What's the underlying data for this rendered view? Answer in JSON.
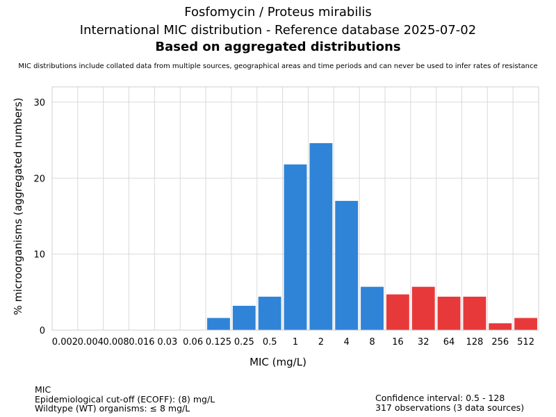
{
  "header": {
    "title_line1": "Fosfomycin / Proteus mirabilis",
    "title_line2": "International MIC distribution - Reference database 2025-07-02",
    "title_line3": "Based on aggregated distributions",
    "note": "MIC distributions include collated data from multiple sources, geographical areas and time periods and can never be used to infer rates of resistance"
  },
  "footer": {
    "left": [
      "MIC",
      "Epidemiological cut-off (ECOFF): (8) mg/L",
      "Wildtype (WT) organisms: ≤ 8 mg/L"
    ],
    "right": [
      "Confidence interval: 0.5 - 128",
      "317 observations (3 data sources)"
    ]
  },
  "colors": {
    "wildtype": "#2f84d8",
    "non_wildtype": "#e8393a",
    "grid": "#d9d9d9"
  },
  "chart_data": {
    "type": "bar",
    "title": "Fosfomycin / Proteus mirabilis",
    "xlabel": "MIC (mg/L)",
    "ylabel": "% microorganisms (aggregated numbers)",
    "categories": [
      "0.002",
      "0.004",
      "0.008",
      "0.016",
      "0.03",
      "0.06",
      "0.125",
      "0.25",
      "0.5",
      "1",
      "2",
      "4",
      "8",
      "16",
      "32",
      "64",
      "128",
      "256",
      "512"
    ],
    "values": [
      0,
      0,
      0,
      0,
      0,
      0,
      1.6,
      3.2,
      4.4,
      21.8,
      24.6,
      17.0,
      5.7,
      4.7,
      5.7,
      4.4,
      4.4,
      0.9,
      1.6
    ],
    "bar_class": [
      "wt",
      "wt",
      "wt",
      "wt",
      "wt",
      "wt",
      "wt",
      "wt",
      "wt",
      "wt",
      "wt",
      "wt",
      "wt",
      "nwt",
      "nwt",
      "nwt",
      "nwt",
      "nwt",
      "nwt"
    ],
    "ylim": [
      0,
      32
    ],
    "yticks": [
      0,
      10,
      20,
      30
    ],
    "grid": true
  }
}
